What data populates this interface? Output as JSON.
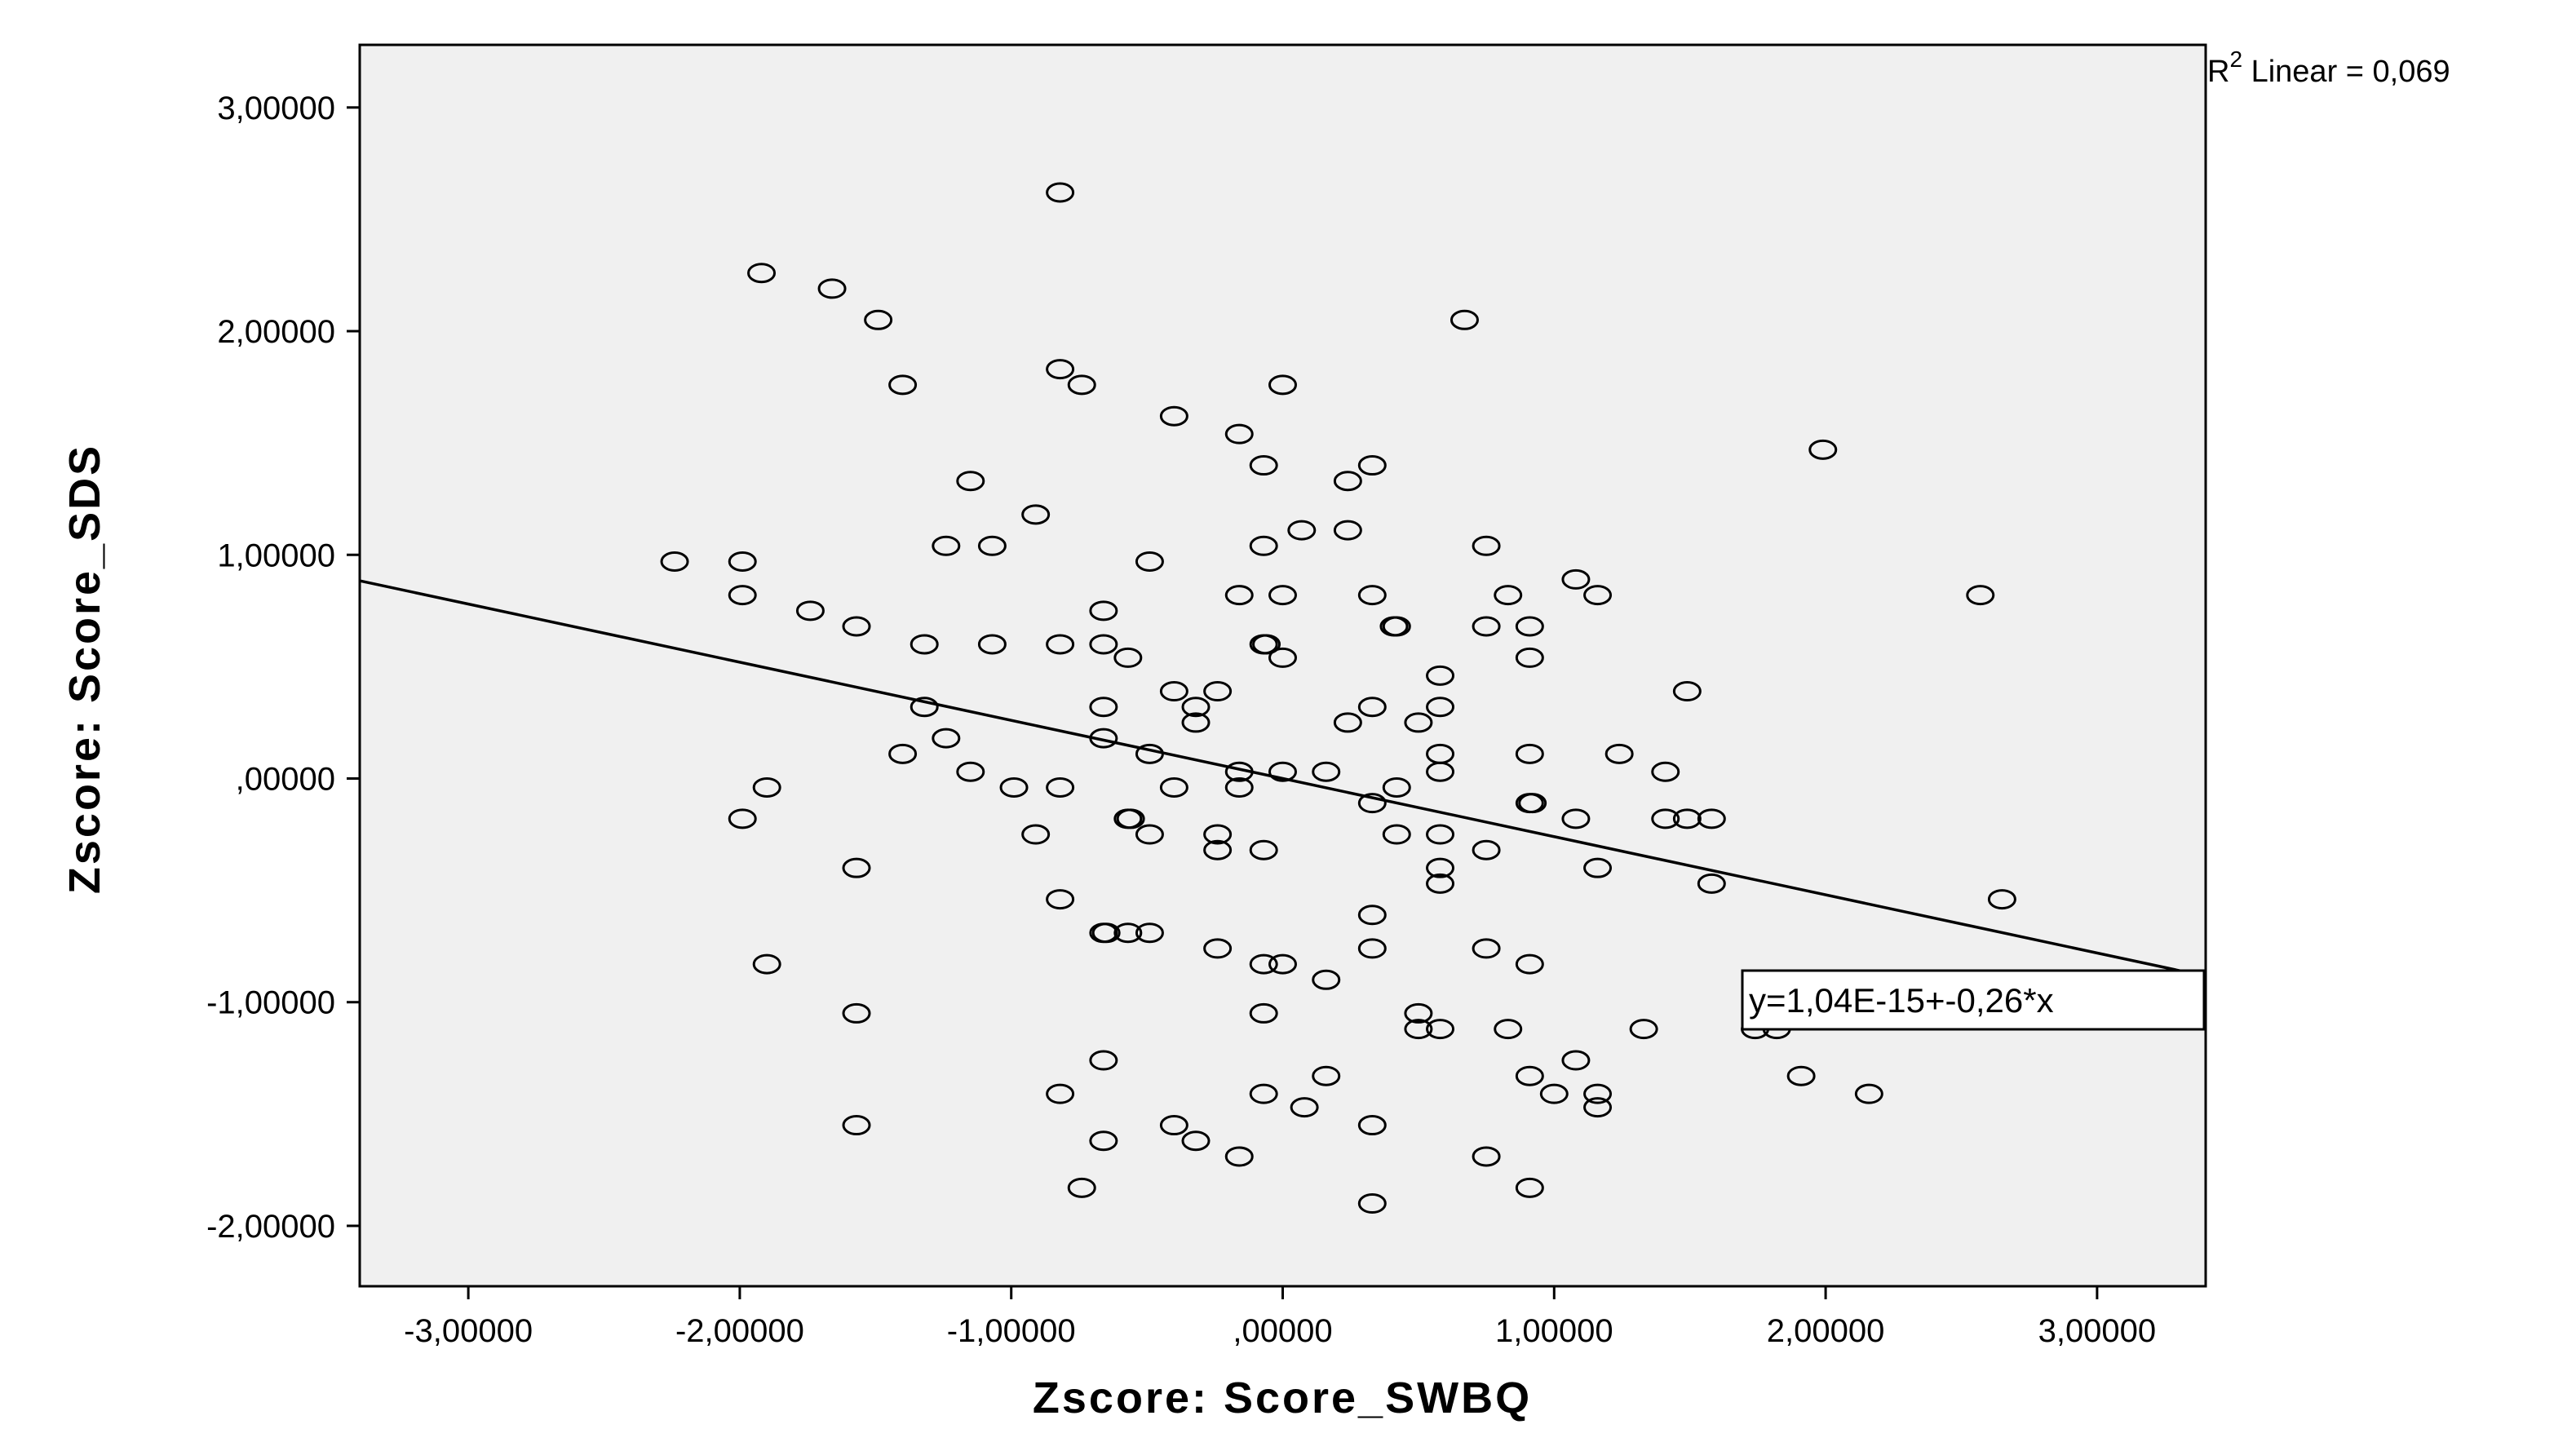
{
  "chart_data": {
    "type": "scatter",
    "xlabel": "Zscore:  Score_SWBQ",
    "ylabel": "Zscore:  Score_SDS",
    "xlim": [
      -3.4,
      3.4
    ],
    "ylim": [
      -2.27,
      3.28
    ],
    "x_ticks": [
      -3,
      -2,
      -1,
      0,
      1,
      2,
      3
    ],
    "y_ticks": [
      -2,
      -1,
      0,
      1,
      2,
      3
    ],
    "x_tick_labels": [
      "-3,00000",
      "-2,00000",
      "-1,00000",
      ",00000",
      "1,00000",
      "2,00000",
      "3,00000"
    ],
    "y_tick_labels": [
      "-2,00000",
      "-1,00000",
      ",00000",
      "1,00000",
      "2,00000",
      "3,00000"
    ],
    "grid": false,
    "colors": {
      "plot_background": "#f0f0f0",
      "page_background": "#ffffff",
      "marker_stroke": "#000000",
      "fit_line": "#000000"
    },
    "r2_legend": {
      "prefix": "R",
      "superscript": "2",
      "text": " Linear = 0,069",
      "position": "top-right"
    },
    "fit_line": {
      "intercept": 0.0,
      "slope": -0.26,
      "label": "y=1,04E-15+-0,26*x"
    },
    "series": [
      {
        "marker": "open-circle",
        "points": [
          [
            -0.82,
            2.62
          ],
          [
            -1.92,
            2.26
          ],
          [
            -1.66,
            2.19
          ],
          [
            -1.49,
            2.05
          ],
          [
            -1.4,
            1.76
          ],
          [
            -0.82,
            1.83
          ],
          [
            -0.74,
            1.76
          ],
          [
            0.67,
            2.05
          ],
          [
            0.0,
            1.76
          ],
          [
            -0.4,
            1.62
          ],
          [
            -0.16,
            1.54
          ],
          [
            -0.07,
            1.4
          ],
          [
            0.33,
            1.4
          ],
          [
            0.24,
            1.33
          ],
          [
            1.99,
            1.47
          ],
          [
            -1.15,
            1.33
          ],
          [
            -0.91,
            1.18
          ],
          [
            -1.24,
            1.04
          ],
          [
            -1.07,
            1.04
          ],
          [
            0.07,
            1.11
          ],
          [
            0.24,
            1.11
          ],
          [
            -0.07,
            1.04
          ],
          [
            0.75,
            1.04
          ],
          [
            -2.24,
            0.97
          ],
          [
            -1.99,
            0.97
          ],
          [
            -0.49,
            0.97
          ],
          [
            -0.16,
            0.82
          ],
          [
            0.0,
            0.82
          ],
          [
            0.33,
            0.82
          ],
          [
            0.83,
            0.82
          ],
          [
            1.08,
            0.89
          ],
          [
            1.16,
            0.82
          ],
          [
            2.57,
            0.82
          ],
          [
            -1.99,
            0.82
          ],
          [
            -1.74,
            0.75
          ],
          [
            -1.57,
            0.68
          ],
          [
            -0.66,
            0.75
          ],
          [
            0.41,
            0.68
          ],
          [
            0.42,
            0.68
          ],
          [
            0.75,
            0.68
          ],
          [
            0.91,
            0.68
          ],
          [
            -1.32,
            0.6
          ],
          [
            -1.07,
            0.6
          ],
          [
            -0.82,
            0.6
          ],
          [
            -0.66,
            0.6
          ],
          [
            -0.57,
            0.54
          ],
          [
            -0.07,
            0.6
          ],
          [
            -0.06,
            0.6
          ],
          [
            0.0,
            0.54
          ],
          [
            0.91,
            0.54
          ],
          [
            0.58,
            0.46
          ],
          [
            -0.4,
            0.39
          ],
          [
            -0.32,
            0.32
          ],
          [
            -0.24,
            0.39
          ],
          [
            1.49,
            0.39
          ],
          [
            -1.32,
            0.32
          ],
          [
            -0.66,
            0.32
          ],
          [
            -0.32,
            0.25
          ],
          [
            0.24,
            0.25
          ],
          [
            0.33,
            0.32
          ],
          [
            0.5,
            0.25
          ],
          [
            0.58,
            0.32
          ],
          [
            -1.24,
            0.18
          ],
          [
            -0.66,
            0.18
          ],
          [
            -1.4,
            0.11
          ],
          [
            -0.49,
            0.11
          ],
          [
            0.58,
            0.11
          ],
          [
            0.91,
            0.11
          ],
          [
            1.24,
            0.11
          ],
          [
            -1.15,
            0.03
          ],
          [
            -0.16,
            0.03
          ],
          [
            0.0,
            0.03
          ],
          [
            0.16,
            0.03
          ],
          [
            0.58,
            0.03
          ],
          [
            1.41,
            0.03
          ],
          [
            -1.9,
            -0.04
          ],
          [
            -0.99,
            -0.04
          ],
          [
            -0.82,
            -0.04
          ],
          [
            -0.4,
            -0.04
          ],
          [
            -0.16,
            -0.04
          ],
          [
            0.42,
            -0.04
          ],
          [
            0.33,
            -0.11
          ],
          [
            0.91,
            -0.11
          ],
          [
            0.92,
            -0.11
          ],
          [
            -1.99,
            -0.18
          ],
          [
            -0.57,
            -0.18
          ],
          [
            -0.56,
            -0.18
          ],
          [
            1.08,
            -0.18
          ],
          [
            1.41,
            -0.18
          ],
          [
            1.49,
            -0.18
          ],
          [
            1.58,
            -0.18
          ],
          [
            -0.91,
            -0.25
          ],
          [
            -0.49,
            -0.25
          ],
          [
            -0.24,
            -0.25
          ],
          [
            0.42,
            -0.25
          ],
          [
            0.58,
            -0.25
          ],
          [
            -0.24,
            -0.32
          ],
          [
            -0.07,
            -0.32
          ],
          [
            0.75,
            -0.32
          ],
          [
            -1.57,
            -0.4
          ],
          [
            0.58,
            -0.4
          ],
          [
            1.16,
            -0.4
          ],
          [
            0.58,
            -0.47
          ],
          [
            1.58,
            -0.47
          ],
          [
            -0.82,
            -0.54
          ],
          [
            2.65,
            -0.54
          ],
          [
            0.33,
            -0.61
          ],
          [
            -0.66,
            -0.69
          ],
          [
            -0.65,
            -0.69
          ],
          [
            -0.57,
            -0.69
          ],
          [
            -0.49,
            -0.69
          ],
          [
            -0.24,
            -0.76
          ],
          [
            0.33,
            -0.76
          ],
          [
            0.75,
            -0.76
          ],
          [
            -1.9,
            -0.83
          ],
          [
            -0.07,
            -0.83
          ],
          [
            0.0,
            -0.83
          ],
          [
            0.91,
            -0.83
          ],
          [
            0.16,
            -0.9
          ],
          [
            -1.57,
            -1.05
          ],
          [
            -0.07,
            -1.05
          ],
          [
            0.5,
            -1.05
          ],
          [
            0.5,
            -1.12
          ],
          [
            0.58,
            -1.12
          ],
          [
            0.83,
            -1.12
          ],
          [
            1.33,
            -1.12
          ],
          [
            1.74,
            -1.12
          ],
          [
            1.82,
            -1.12
          ],
          [
            -0.66,
            -1.26
          ],
          [
            1.08,
            -1.26
          ],
          [
            0.16,
            -1.33
          ],
          [
            0.91,
            -1.33
          ],
          [
            1.91,
            -1.33
          ],
          [
            -0.82,
            -1.41
          ],
          [
            -0.07,
            -1.41
          ],
          [
            1.0,
            -1.41
          ],
          [
            1.16,
            -1.41
          ],
          [
            2.16,
            -1.41
          ],
          [
            1.16,
            -1.47
          ],
          [
            0.08,
            -1.47
          ],
          [
            -1.57,
            -1.55
          ],
          [
            -0.4,
            -1.55
          ],
          [
            0.33,
            -1.55
          ],
          [
            -0.66,
            -1.62
          ],
          [
            -0.32,
            -1.62
          ],
          [
            -0.16,
            -1.69
          ],
          [
            0.75,
            -1.69
          ],
          [
            -0.74,
            -1.83
          ],
          [
            0.91,
            -1.83
          ],
          [
            0.33,
            -1.9
          ]
        ]
      }
    ]
  }
}
